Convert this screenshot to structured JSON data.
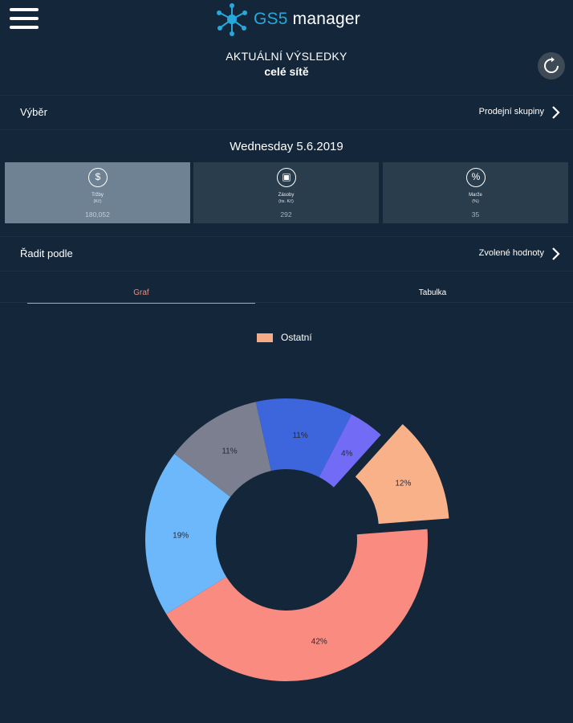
{
  "header": {
    "logo_brand": "GS5",
    "logo_rest": " manager",
    "menu_icon": "hamburger-menu-icon",
    "logo_icon": "network-nodes-icon"
  },
  "title": {
    "line1": "AKTUÁLNÍ VÝSLEDKY",
    "line2": "celé sítě",
    "refresh_icon": "refresh-icon"
  },
  "selection": {
    "label": "Výběr",
    "value": "Prodejní skupiny"
  },
  "date": "Wednesday 5.6.2019",
  "cards": [
    {
      "icon": "$",
      "icon_name": "dollar-icon",
      "name": "Tržby",
      "unit": "(Kč)",
      "value": "180,052",
      "active": true
    },
    {
      "icon": "▣",
      "icon_name": "calendar-icon",
      "name": "Zásoby",
      "unit": "(tis. Kč)",
      "value": "292",
      "active": false
    },
    {
      "icon": "%",
      "icon_name": "percent-icon",
      "name": "Marže",
      "unit": "(%)",
      "value": "35",
      "active": false
    }
  ],
  "sort": {
    "label": "Řadit podle",
    "value": "Zvolené hodnoty"
  },
  "tabs": {
    "graf": "Graf",
    "tabulka": "Tabulka"
  },
  "colors": {
    "background": "#14263a",
    "accent_tab": "#e58f82"
  },
  "chart_data": {
    "type": "pie",
    "legend": [
      {
        "name": "Ostatní",
        "color": "#f5ac86"
      }
    ],
    "legend_position": "top-center",
    "donut": true,
    "slices": [
      {
        "label": "12%",
        "value": 12,
        "color": "#f9b18a",
        "exploded": true
      },
      {
        "label": "42%",
        "value": 42,
        "color": "#f98b80",
        "exploded": false
      },
      {
        "label": "19%",
        "value": 19,
        "color": "#6db7fb",
        "exploded": false
      },
      {
        "label": "11%",
        "value": 11,
        "color": "#7b7f90",
        "exploded": false
      },
      {
        "label": "11%",
        "value": 11,
        "color": "#3e66dc",
        "exploded": false
      },
      {
        "label": "4%",
        "value": 4,
        "color": "#716bf6",
        "exploded": false
      }
    ]
  }
}
